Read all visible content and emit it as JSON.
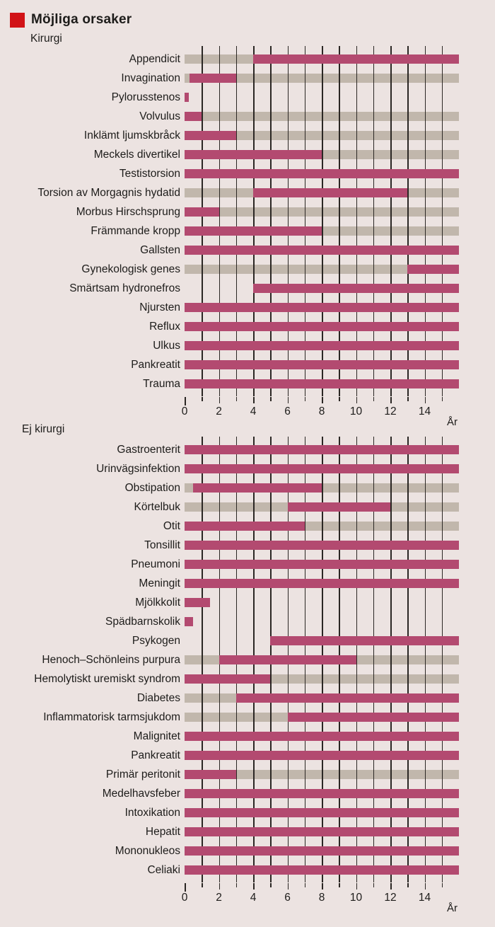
{
  "chart_data": {
    "type": "bar",
    "variant": "horizontal-age-range",
    "title": "Möjliga orsaker",
    "legend_color": "#d11216",
    "colors": {
      "active": "#b34a70",
      "inactive": "#c1b7ac",
      "background": "#ece3e1",
      "gridline": "#2b2724"
    },
    "x_axis": {
      "min": 0,
      "max": 16,
      "unit": "År",
      "gridline_years": [
        1,
        2,
        3,
        4,
        5,
        6,
        7,
        8,
        9,
        10,
        11,
        12,
        13,
        14,
        15
      ],
      "tick_years": [
        0,
        1,
        2,
        3,
        4,
        5,
        6,
        7,
        8,
        9,
        10,
        11,
        12,
        13,
        14,
        15
      ],
      "label_ticks": [
        0,
        2,
        4,
        6,
        8,
        10,
        12,
        14
      ]
    },
    "sections": [
      {
        "label": "Kirurgi",
        "rows": [
          {
            "label": "Appendicit",
            "segments": [
              {
                "state": "inactive",
                "from": 0,
                "to": 4
              },
              {
                "state": "active",
                "from": 4,
                "to": 16
              }
            ]
          },
          {
            "label": "Invagination",
            "segments": [
              {
                "state": "inactive",
                "from": 0,
                "to": 0.3
              },
              {
                "state": "active",
                "from": 0.3,
                "to": 3
              },
              {
                "state": "inactive",
                "from": 3,
                "to": 16
              }
            ]
          },
          {
            "label": "Pylorusstenos",
            "segments": [
              {
                "state": "active",
                "from": 0,
                "to": 0.25
              }
            ]
          },
          {
            "label": "Volvulus",
            "segments": [
              {
                "state": "active",
                "from": 0,
                "to": 1
              },
              {
                "state": "inactive",
                "from": 1,
                "to": 16
              }
            ]
          },
          {
            "label": "Inklämt ljumskbråck",
            "segments": [
              {
                "state": "active",
                "from": 0,
                "to": 3
              },
              {
                "state": "inactive",
                "from": 3,
                "to": 16
              }
            ]
          },
          {
            "label": "Meckels divertikel",
            "segments": [
              {
                "state": "active",
                "from": 0,
                "to": 8
              },
              {
                "state": "inactive",
                "from": 8,
                "to": 16
              }
            ]
          },
          {
            "label": "Testistorsion",
            "segments": [
              {
                "state": "active",
                "from": 0,
                "to": 16
              }
            ]
          },
          {
            "label": "Torsion av Morgagnis hydatid",
            "segments": [
              {
                "state": "inactive",
                "from": 0,
                "to": 4
              },
              {
                "state": "active",
                "from": 4,
                "to": 13
              },
              {
                "state": "inactive",
                "from": 13,
                "to": 16
              }
            ]
          },
          {
            "label": "Morbus Hirschsprung",
            "segments": [
              {
                "state": "active",
                "from": 0,
                "to": 2
              },
              {
                "state": "inactive",
                "from": 2,
                "to": 16
              }
            ]
          },
          {
            "label": "Främmande kropp",
            "segments": [
              {
                "state": "active",
                "from": 0,
                "to": 8
              },
              {
                "state": "inactive",
                "from": 8,
                "to": 16
              }
            ]
          },
          {
            "label": "Gallsten",
            "segments": [
              {
                "state": "active",
                "from": 0,
                "to": 16
              }
            ]
          },
          {
            "label": "Gynekologisk genes",
            "segments": [
              {
                "state": "inactive",
                "from": 0,
                "to": 13
              },
              {
                "state": "active",
                "from": 13,
                "to": 16
              }
            ]
          },
          {
            "label": "Smärtsam hydronefros",
            "segments": [
              {
                "state": "active",
                "from": 4,
                "to": 16
              }
            ]
          },
          {
            "label": "Njursten",
            "segments": [
              {
                "state": "active",
                "from": 0,
                "to": 16
              }
            ]
          },
          {
            "label": "Reflux",
            "segments": [
              {
                "state": "active",
                "from": 0,
                "to": 16
              }
            ]
          },
          {
            "label": "Ulkus",
            "segments": [
              {
                "state": "active",
                "from": 0,
                "to": 16
              }
            ]
          },
          {
            "label": "Pankreatit",
            "segments": [
              {
                "state": "active",
                "from": 0,
                "to": 16
              }
            ]
          },
          {
            "label": "Trauma",
            "segments": [
              {
                "state": "active",
                "from": 0,
                "to": 16
              }
            ]
          }
        ]
      },
      {
        "label": "Ej kirurgi",
        "rows": [
          {
            "label": "Gastroenterit",
            "segments": [
              {
                "state": "active",
                "from": 0,
                "to": 16
              }
            ]
          },
          {
            "label": "Urinvägsinfektion",
            "segments": [
              {
                "state": "active",
                "from": 0,
                "to": 16
              }
            ]
          },
          {
            "label": "Obstipation",
            "segments": [
              {
                "state": "inactive",
                "from": 0,
                "to": 0.5
              },
              {
                "state": "active",
                "from": 0.5,
                "to": 8
              },
              {
                "state": "inactive",
                "from": 8,
                "to": 16
              }
            ]
          },
          {
            "label": "Körtelbuk",
            "segments": [
              {
                "state": "inactive",
                "from": 0,
                "to": 6
              },
              {
                "state": "active",
                "from": 6,
                "to": 12
              },
              {
                "state": "inactive",
                "from": 12,
                "to": 16
              }
            ]
          },
          {
            "label": "Otit",
            "segments": [
              {
                "state": "active",
                "from": 0,
                "to": 7
              },
              {
                "state": "inactive",
                "from": 7,
                "to": 16
              }
            ]
          },
          {
            "label": "Tonsillit",
            "segments": [
              {
                "state": "active",
                "from": 0,
                "to": 16
              }
            ]
          },
          {
            "label": "Pneumoni",
            "segments": [
              {
                "state": "active",
                "from": 0,
                "to": 16
              }
            ]
          },
          {
            "label": "Meningit",
            "segments": [
              {
                "state": "active",
                "from": 0,
                "to": 16
              }
            ]
          },
          {
            "label": "Mjölkkolit",
            "segments": [
              {
                "state": "active",
                "from": 0,
                "to": 1.5
              }
            ]
          },
          {
            "label": "Spädbarnskolik",
            "segments": [
              {
                "state": "active",
                "from": 0,
                "to": 0.5
              }
            ]
          },
          {
            "label": "Psykogen",
            "segments": [
              {
                "state": "active",
                "from": 5,
                "to": 16
              }
            ]
          },
          {
            "label": "Henoch–Schönleins purpura",
            "segments": [
              {
                "state": "inactive",
                "from": 0,
                "to": 2
              },
              {
                "state": "active",
                "from": 2,
                "to": 10
              },
              {
                "state": "inactive",
                "from": 10,
                "to": 16
              }
            ]
          },
          {
            "label": "Hemolytiskt uremiskt syndrom",
            "segments": [
              {
                "state": "active",
                "from": 0,
                "to": 5
              },
              {
                "state": "inactive",
                "from": 5,
                "to": 16
              }
            ]
          },
          {
            "label": "Diabetes",
            "segments": [
              {
                "state": "inactive",
                "from": 0,
                "to": 3
              },
              {
                "state": "active",
                "from": 3,
                "to": 16
              }
            ]
          },
          {
            "label": "Inflammatorisk tarmsjukdom",
            "segments": [
              {
                "state": "inactive",
                "from": 0,
                "to": 6
              },
              {
                "state": "active",
                "from": 6,
                "to": 16
              }
            ]
          },
          {
            "label": "Malignitet",
            "segments": [
              {
                "state": "active",
                "from": 0,
                "to": 16
              }
            ]
          },
          {
            "label": "Pankreatit",
            "segments": [
              {
                "state": "active",
                "from": 0,
                "to": 16
              }
            ]
          },
          {
            "label": "Primär peritonit",
            "segments": [
              {
                "state": "active",
                "from": 0,
                "to": 3
              },
              {
                "state": "inactive",
                "from": 3,
                "to": 16
              }
            ]
          },
          {
            "label": "Medelhavsfeber",
            "segments": [
              {
                "state": "active",
                "from": 0,
                "to": 16
              }
            ]
          },
          {
            "label": "Intoxikation",
            "segments": [
              {
                "state": "active",
                "from": 0,
                "to": 16
              }
            ]
          },
          {
            "label": "Hepatit",
            "segments": [
              {
                "state": "active",
                "from": 0,
                "to": 16
              }
            ]
          },
          {
            "label": "Mononukleos",
            "segments": [
              {
                "state": "active",
                "from": 0,
                "to": 16
              }
            ]
          },
          {
            "label": "Celiaki",
            "segments": [
              {
                "state": "active",
                "from": 0,
                "to": 16
              }
            ]
          }
        ]
      }
    ]
  }
}
